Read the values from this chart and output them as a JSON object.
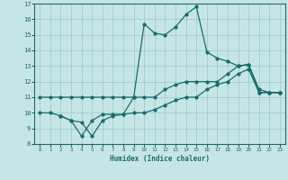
{
  "xlabel": "Humidex (Indice chaleur)",
  "xlim": [
    -0.5,
    23.5
  ],
  "ylim": [
    8,
    17
  ],
  "xticks": [
    0,
    1,
    2,
    3,
    4,
    5,
    6,
    7,
    8,
    9,
    10,
    11,
    12,
    13,
    14,
    15,
    16,
    17,
    18,
    19,
    20,
    21,
    22,
    23
  ],
  "yticks": [
    8,
    9,
    10,
    11,
    12,
    13,
    14,
    15,
    16,
    17
  ],
  "background_color": "#c6e6e6",
  "grid_color": "#a0cccc",
  "line_color": "#1a6b6b",
  "line1_x": [
    0,
    1,
    2,
    3,
    4,
    5,
    6,
    7,
    8,
    9,
    10,
    11,
    12,
    13,
    14,
    15,
    16,
    17,
    18,
    19,
    20,
    21,
    22,
    23
  ],
  "line1_y": [
    11,
    11,
    11,
    11,
    11,
    11,
    11,
    11,
    11,
    11,
    11,
    11,
    11.5,
    11.8,
    12,
    12,
    12,
    12,
    12.5,
    13,
    13.1,
    11.3,
    11.3,
    11.3
  ],
  "line2_x": [
    0,
    1,
    2,
    3,
    4,
    5,
    6,
    7,
    8,
    9,
    10,
    11,
    12,
    13,
    14,
    15,
    16,
    17,
    18,
    19,
    20,
    21,
    22,
    23
  ],
  "line2_y": [
    10,
    10,
    9.8,
    9.5,
    9.4,
    8.5,
    9.5,
    9.8,
    9.9,
    10,
    10,
    10.2,
    10.5,
    10.8,
    11,
    11,
    11.5,
    11.8,
    12,
    12.5,
    12.8,
    11.3,
    11.3,
    11.3
  ],
  "line3_x": [
    2,
    3,
    4,
    5,
    6,
    7,
    8,
    9,
    10,
    11,
    12,
    13,
    14,
    15,
    16,
    17,
    18,
    19,
    20,
    21,
    22,
    23
  ],
  "line3_y": [
    9.8,
    9.5,
    8.5,
    9.5,
    9.9,
    9.9,
    9.9,
    11,
    15.7,
    15.1,
    15,
    15.5,
    16.3,
    16.8,
    13.9,
    13.5,
    13.3,
    13,
    13.1,
    11.5,
    11.3,
    11.3
  ]
}
